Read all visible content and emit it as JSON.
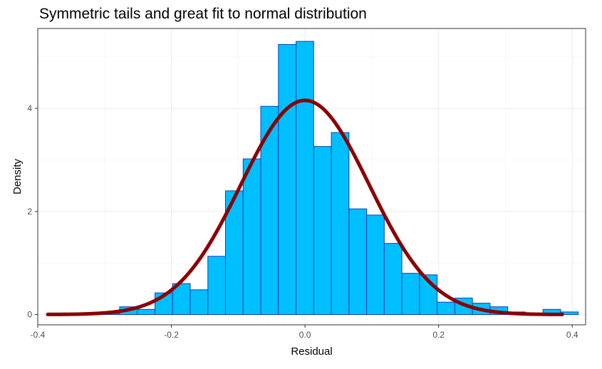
{
  "chart_data": {
    "type": "bar",
    "title": "Symmetric tails and great fit to normal distribution",
    "xlabel": "Residual",
    "ylabel": "Density",
    "xlim": [
      -0.4,
      0.42
    ],
    "ylim": [
      -0.2,
      5.55
    ],
    "xticks": [
      -0.4,
      -0.2,
      0.0,
      0.2,
      0.4
    ],
    "xtick_labels": [
      "-0.4",
      "-0.2",
      "0.0",
      "0.2",
      "0.4"
    ],
    "yticks": [
      0,
      2,
      4
    ],
    "ytick_labels": [
      "0",
      "2",
      "4"
    ],
    "grid": true,
    "legend": "none",
    "histogram": {
      "bin_width": 0.0264,
      "bins": [
        {
          "x_left": -0.383,
          "density": 0.03
        },
        {
          "x_left": -0.3566,
          "density": 0.02
        },
        {
          "x_left": -0.3302,
          "density": 0.02
        },
        {
          "x_left": -0.3038,
          "density": 0.02
        },
        {
          "x_left": -0.2774,
          "density": 0.15
        },
        {
          "x_left": -0.251,
          "density": 0.1
        },
        {
          "x_left": -0.2246,
          "density": 0.42
        },
        {
          "x_left": -0.1982,
          "density": 0.6
        },
        {
          "x_left": -0.1718,
          "density": 0.48
        },
        {
          "x_left": -0.1454,
          "density": 1.13
        },
        {
          "x_left": -0.119,
          "density": 2.4
        },
        {
          "x_left": -0.0926,
          "density": 3.02
        },
        {
          "x_left": -0.0662,
          "density": 4.04
        },
        {
          "x_left": -0.0398,
          "density": 5.24
        },
        {
          "x_left": -0.0134,
          "density": 5.3
        },
        {
          "x_left": 0.013,
          "density": 3.26
        },
        {
          "x_left": 0.0394,
          "density": 3.53
        },
        {
          "x_left": 0.0658,
          "density": 2.05
        },
        {
          "x_left": 0.0922,
          "density": 1.93
        },
        {
          "x_left": 0.1186,
          "density": 1.38
        },
        {
          "x_left": 0.145,
          "density": 0.8
        },
        {
          "x_left": 0.1714,
          "density": 0.77
        },
        {
          "x_left": 0.1978,
          "density": 0.24
        },
        {
          "x_left": 0.2242,
          "density": 0.32
        },
        {
          "x_left": 0.2506,
          "density": 0.22
        },
        {
          "x_left": 0.277,
          "density": 0.15
        },
        {
          "x_left": 0.3034,
          "density": 0.05
        },
        {
          "x_left": 0.3298,
          "density": 0.02
        },
        {
          "x_left": 0.3562,
          "density": 0.1
        },
        {
          "x_left": 0.3826,
          "density": 0.05
        }
      ]
    },
    "normal_curve": {
      "mean": 0.0,
      "sd": 0.096,
      "x_range": [
        -0.385,
        0.385
      ]
    },
    "colors": {
      "bar_fill": "#00bfff",
      "bar_outline": "#0b3fb8",
      "curve": "#8b0000",
      "grid": "#ebebeb",
      "panel_border": "#333333"
    }
  }
}
